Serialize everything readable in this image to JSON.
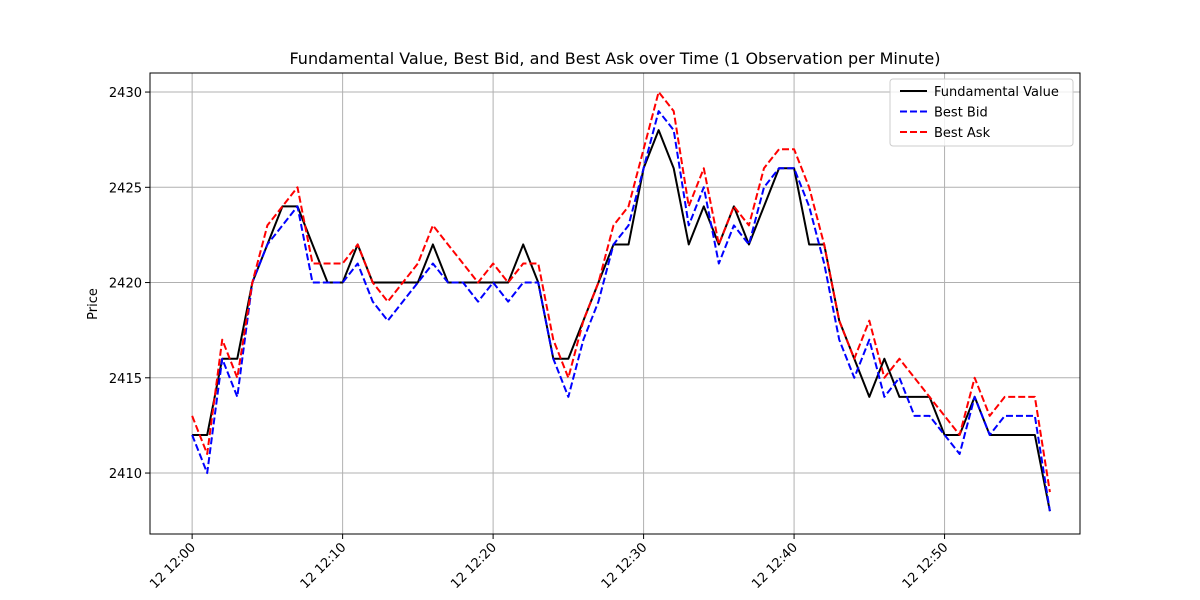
{
  "chart_data": {
    "type": "line",
    "title": "Fundamental Value, Best Bid, and Best Ask over Time (1 Observation per Minute)",
    "xlabel": "",
    "ylabel": "Price",
    "ylim": [
      2406.8,
      2431
    ],
    "xlim": [
      "12 11:57.2",
      "12 12:59.0"
    ],
    "grid": true,
    "legend_position": "top-right",
    "x_ticks": [
      "12 12:00",
      "12 12:10",
      "12 12:20",
      "12 12:30",
      "12 12:40",
      "12 12:50"
    ],
    "y_ticks": [
      2410,
      2415,
      2420,
      2425,
      2430
    ],
    "x": [
      "12 12:00",
      "12 12:01",
      "12 12:02",
      "12 12:03",
      "12 12:04",
      "12 12:05",
      "12 12:06",
      "12 12:07",
      "12 12:08",
      "12 12:09",
      "12 12:10",
      "12 12:11",
      "12 12:12",
      "12 12:13",
      "12 12:14",
      "12 12:15",
      "12 12:16",
      "12 12:17",
      "12 12:18",
      "12 12:19",
      "12 12:20",
      "12 12:21",
      "12 12:22",
      "12 12:23",
      "12 12:24",
      "12 12:25",
      "12 12:26",
      "12 12:27",
      "12 12:28",
      "12 12:29",
      "12 12:30",
      "12 12:31",
      "12 12:32",
      "12 12:33",
      "12 12:34",
      "12 12:35",
      "12 12:36",
      "12 12:37",
      "12 12:38",
      "12 12:39",
      "12 12:40",
      "12 12:41",
      "12 12:42",
      "12 12:43",
      "12 12:44",
      "12 12:45",
      "12 12:46",
      "12 12:47",
      "12 12:48",
      "12 12:49",
      "12 12:50",
      "12 12:51",
      "12 12:52",
      "12 12:53",
      "12 12:54",
      "12 12:55",
      "12 12:56",
      "12 12:57"
    ],
    "series": [
      {
        "name": "Fundamental Value",
        "color": "#000000",
        "dash": "solid",
        "values": [
          2412,
          2412,
          2416,
          2416,
          2420,
          2422,
          2424,
          2424,
          2422,
          2420,
          2420,
          2422,
          2420,
          2420,
          2420,
          2420,
          2422,
          2420,
          2420,
          2420,
          2420,
          2420,
          2422,
          2420,
          2416,
          2416,
          2418,
          2420,
          2422,
          2422,
          2426,
          2428,
          2426,
          2422,
          2424,
          2422,
          2424,
          2422,
          2424,
          2426,
          2426,
          2422,
          2422,
          2418,
          2416,
          2414,
          2416,
          2414,
          2414,
          2414,
          2412,
          2412,
          2414,
          2412,
          2412,
          2412,
          2412,
          2408
        ]
      },
      {
        "name": "Best Bid",
        "color": "#0000ff",
        "dash": "dashed",
        "values": [
          2412,
          2410,
          2416,
          2414,
          2420,
          2422,
          2423,
          2424,
          2420,
          2420,
          2420,
          2421,
          2419,
          2418,
          2419,
          2420,
          2421,
          2420,
          2420,
          2419,
          2420,
          2419,
          2420,
          2420,
          2416,
          2414,
          2417,
          2419,
          2422,
          2423,
          2426,
          2429,
          2428,
          2423,
          2425,
          2421,
          2423,
          2422,
          2425,
          2426,
          2426,
          2424,
          2421,
          2417,
          2415,
          2417,
          2414,
          2415,
          2413,
          2413,
          2412,
          2411,
          2414,
          2412,
          2413,
          2413,
          2413,
          2408
        ]
      },
      {
        "name": "Best Ask",
        "color": "#ff0000",
        "dash": "dashed",
        "values": [
          2413,
          2411,
          2417,
          2415,
          2420,
          2423,
          2424,
          2425,
          2421,
          2421,
          2421,
          2422,
          2420,
          2419,
          2420,
          2421,
          2423,
          2422,
          2421,
          2420,
          2421,
          2420,
          2421,
          2421,
          2417,
          2415,
          2418,
          2420,
          2423,
          2424,
          2427,
          2430,
          2429,
          2424,
          2426,
          2422,
          2424,
          2423,
          2426,
          2427,
          2427,
          2425,
          2422,
          2418,
          2416,
          2418,
          2415,
          2416,
          2415,
          2414,
          2413,
          2412,
          2415,
          2413,
          2414,
          2414,
          2414,
          2409
        ]
      }
    ]
  }
}
